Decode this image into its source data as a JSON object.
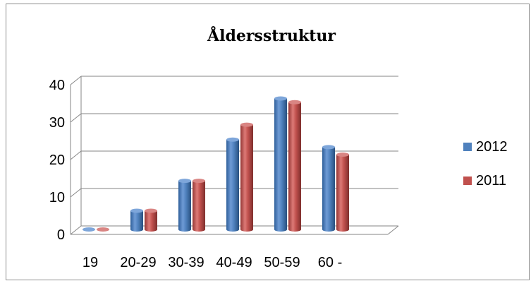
{
  "chart_data": {
    "type": "bar",
    "title": "Åldersstruktur",
    "xlabel": "",
    "ylabel": "",
    "categories": [
      "19",
      "20-29",
      "30-39",
      "40-49",
      "50-59",
      "60 -"
    ],
    "series": [
      {
        "name": "2012",
        "values": [
          0,
          5,
          13,
          24,
          35,
          22
        ],
        "color": "#4f81bd"
      },
      {
        "name": "2011",
        "values": [
          0,
          5,
          13,
          28,
          34,
          20
        ],
        "color": "#c0504d"
      }
    ],
    "yticks": [
      "0",
      "10",
      "20",
      "30",
      "40"
    ],
    "ylim": [
      0,
      40
    ],
    "grid": true,
    "style": "3d-cylinder",
    "legend_position": "right"
  }
}
